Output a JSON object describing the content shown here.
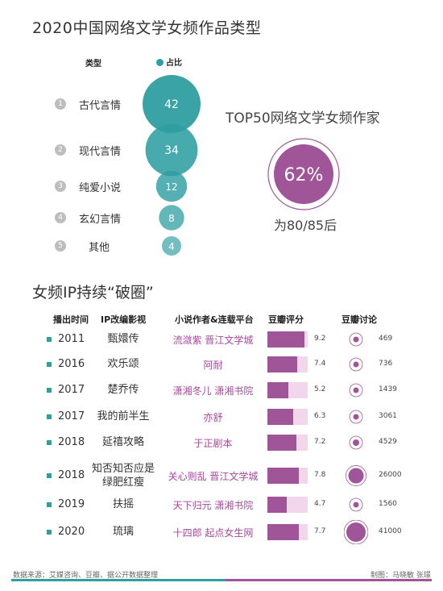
{
  "section1": {
    "title": "2020中国网络文学女频作品类型",
    "header_type": "类型",
    "header_share": "占比"
  },
  "types": [
    {
      "num": "1",
      "name": "古代言情",
      "value": 42
    },
    {
      "num": "2",
      "name": "现代言情",
      "value": 34
    },
    {
      "num": "3",
      "name": "纯爱小说",
      "value": 12
    },
    {
      "num": "4",
      "name": "玄幻言情",
      "value": 8
    },
    {
      "num": "5",
      "name": "其他",
      "value": 4
    }
  ],
  "top50": {
    "title": "TOP50网络文学女频作家",
    "percent": "62%",
    "percent_value": 62,
    "label": "为80/85后"
  },
  "section2": {
    "title": "女频IP持续“破圈”",
    "headers": [
      "播出时间",
      "IP改编影视",
      "小说作者&连载平台",
      "豆瓣评分",
      "豆瓣讨论"
    ]
  },
  "ip_rows": [
    {
      "year": "2011",
      "drama": "甄嬛传",
      "author": "流潋紫 晋江文学城",
      "score": 9.2,
      "discussion": 469
    },
    {
      "year": "2016",
      "drama": "欢乐颂",
      "author": "阿耐",
      "score": 7.4,
      "discussion": 736
    },
    {
      "year": "2017",
      "drama": "楚乔传",
      "author": "潇湘冬儿 潇湘书院",
      "score": 5.2,
      "discussion": 1439
    },
    {
      "year": "2017",
      "drama": "我的前半生",
      "author": "亦舒",
      "score": 6.3,
      "discussion": 3061
    },
    {
      "year": "2018",
      "drama": "延禧攻略",
      "author": "于正剧本",
      "score": 7.2,
      "discussion": 4529
    },
    {
      "year": "2018",
      "drama": "知否知否应是绿肥红瘦",
      "drama_lines": [
        "知否知否应是",
        "绿肥红瘦"
      ],
      "author": "关心则乱 晋江文学城",
      "score": 7.8,
      "discussion": 26000
    },
    {
      "year": "2019",
      "drama": "扶摇",
      "author": "天下归元 潇湘书院",
      "score": 4.7,
      "discussion": 1560
    },
    {
      "year": "2020",
      "drama": "琉璃",
      "author": "十四郎 起点女生网",
      "score": 7.7,
      "discussion": 41000
    }
  ],
  "chart_data": [
    {
      "type": "bubble",
      "title": "2020中国网络文学女频作品类型",
      "categories": [
        "古代言情",
        "现代言情",
        "纯爱小说",
        "玄幻言情",
        "其他"
      ],
      "values": [
        42,
        34,
        12,
        8,
        4
      ],
      "legend": [
        "占比"
      ]
    },
    {
      "type": "table",
      "title": "女频IP持续“破圈”",
      "columns": [
        "播出时间",
        "IP改编影视",
        "小说作者&连载平台",
        "豆瓣评分",
        "豆瓣讨论"
      ],
      "score_range": [
        0,
        10
      ]
    }
  ],
  "footer": {
    "source": "数据来源：艾媒咨询、豆瓣、据公开数据整理",
    "credit": "制图：马晓敏 张璟"
  },
  "colors": {
    "teal": "#2e9ea1",
    "purple": "#a05599",
    "light_purple": "#f1d6ec",
    "author_purple": "#a6479d"
  }
}
